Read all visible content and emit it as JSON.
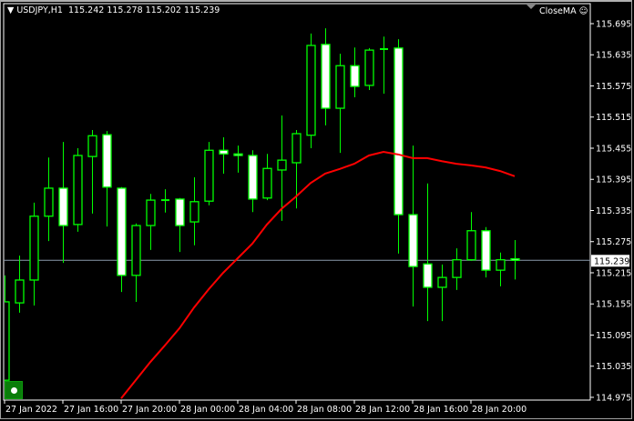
{
  "header": {
    "symbol": "USDJPY,H1",
    "open": "115.242",
    "high": "115.278",
    "low": "115.202",
    "close": "115.239",
    "dropdown_icon": "triangle-down"
  },
  "indicator": {
    "name": "CloseMA",
    "icon": "smiley-face"
  },
  "current_price": "115.239",
  "colors": {
    "background": "#000000",
    "candle_outline": "#00ff00",
    "bull_body": "#000000",
    "bear_body": "#ffffff",
    "ma_line": "#ff0000",
    "price_line": "#8a9aaa"
  },
  "chart_data": {
    "type": "candlestick",
    "timeframe": "H1",
    "ylim": [
      114.975,
      115.71
    ],
    "y_ticks": [
      "115.695",
      "115.635",
      "115.575",
      "115.515",
      "115.455",
      "115.395",
      "115.335",
      "115.275",
      "115.215",
      "115.155",
      "115.095",
      "115.035",
      "114.975"
    ],
    "x_tick_labels": [
      "27 Jan 2022",
      "27 Jan 16:00",
      "27 Jan 20:00",
      "28 Jan 00:00",
      "28 Jan 04:00",
      "28 Jan 08:00",
      "28 Jan 12:00",
      "28 Jan 16:00",
      "28 Jan 20:00"
    ],
    "times": [
      "27 Jan 12:00",
      "27 Jan 13:00",
      "27 Jan 14:00",
      "27 Jan 15:00",
      "27 Jan 16:00",
      "27 Jan 17:00",
      "27 Jan 18:00",
      "27 Jan 19:00",
      "27 Jan 20:00",
      "27 Jan 21:00",
      "27 Jan 22:00",
      "27 Jan 23:00",
      "28 Jan 00:00",
      "28 Jan 01:00",
      "28 Jan 02:00",
      "28 Jan 03:00",
      "28 Jan 04:00",
      "28 Jan 05:00",
      "28 Jan 06:00",
      "28 Jan 07:00",
      "28 Jan 08:00",
      "28 Jan 09:00",
      "28 Jan 10:00",
      "28 Jan 11:00",
      "28 Jan 12:00",
      "28 Jan 13:00",
      "28 Jan 14:00",
      "28 Jan 15:00",
      "28 Jan 16:00",
      "28 Jan 17:00",
      "28 Jan 18:00",
      "28 Jan 19:00",
      "28 Jan 20:00",
      "28 Jan 21:00",
      "28 Jan 22:00",
      "28 Jan 23:00"
    ],
    "ohlc": [
      [
        115.008,
        115.21,
        115.005,
        115.159
      ],
      [
        115.157,
        115.248,
        115.138,
        115.201
      ],
      [
        115.201,
        115.35,
        115.152,
        115.324
      ],
      [
        115.324,
        115.437,
        115.276,
        115.378
      ],
      [
        115.378,
        115.467,
        115.234,
        115.306
      ],
      [
        115.308,
        115.455,
        115.294,
        115.441
      ],
      [
        115.439,
        115.49,
        115.329,
        115.479
      ],
      [
        115.481,
        115.488,
        115.304,
        115.38
      ],
      [
        115.378,
        115.38,
        115.178,
        115.21
      ],
      [
        115.21,
        115.31,
        115.159,
        115.306
      ],
      [
        115.306,
        115.367,
        115.259,
        115.355
      ],
      [
        115.355,
        115.376,
        115.331,
        115.355
      ],
      [
        115.357,
        115.359,
        115.255,
        115.306
      ],
      [
        115.313,
        115.399,
        115.268,
        115.352
      ],
      [
        115.353,
        115.467,
        115.345,
        115.451
      ],
      [
        115.451,
        115.476,
        115.406,
        115.444
      ],
      [
        115.444,
        115.46,
        115.408,
        115.441
      ],
      [
        115.441,
        115.451,
        115.332,
        115.357
      ],
      [
        115.359,
        115.444,
        115.355,
        115.416
      ],
      [
        115.413,
        115.518,
        115.315,
        115.432
      ],
      [
        115.427,
        115.49,
        115.339,
        115.483
      ],
      [
        115.48,
        115.676,
        115.455,
        115.653
      ],
      [
        115.655,
        115.686,
        115.499,
        115.532
      ],
      [
        115.532,
        115.637,
        115.446,
        115.614
      ],
      [
        115.614,
        115.649,
        115.553,
        115.574
      ],
      [
        115.576,
        115.648,
        115.567,
        115.644
      ],
      [
        115.646,
        115.67,
        115.56,
        115.646
      ],
      [
        115.648,
        115.665,
        115.252,
        115.327
      ],
      [
        115.327,
        115.46,
        115.15,
        115.227
      ],
      [
        115.232,
        115.387,
        115.122,
        115.187
      ],
      [
        115.187,
        115.231,
        115.122,
        115.206
      ],
      [
        115.206,
        115.262,
        115.182,
        115.24
      ],
      [
        115.24,
        115.332,
        115.238,
        115.296
      ],
      [
        115.296,
        115.303,
        115.206,
        115.22
      ],
      [
        115.22,
        115.254,
        115.189,
        115.24
      ],
      [
        115.242,
        115.278,
        115.202,
        115.239
      ]
    ],
    "series": [
      {
        "name": "CloseMA",
        "values": [
          null,
          null,
          null,
          null,
          null,
          null,
          null,
          null,
          114.973,
          115.008,
          115.043,
          115.075,
          115.108,
          115.148,
          115.183,
          115.215,
          115.243,
          115.271,
          115.308,
          115.338,
          115.362,
          115.388,
          115.406,
          115.415,
          115.425,
          115.441,
          115.448,
          115.443,
          115.436,
          115.436,
          115.43,
          115.425,
          115.422,
          115.418,
          115.411,
          115.401
        ]
      }
    ],
    "grid": false
  }
}
